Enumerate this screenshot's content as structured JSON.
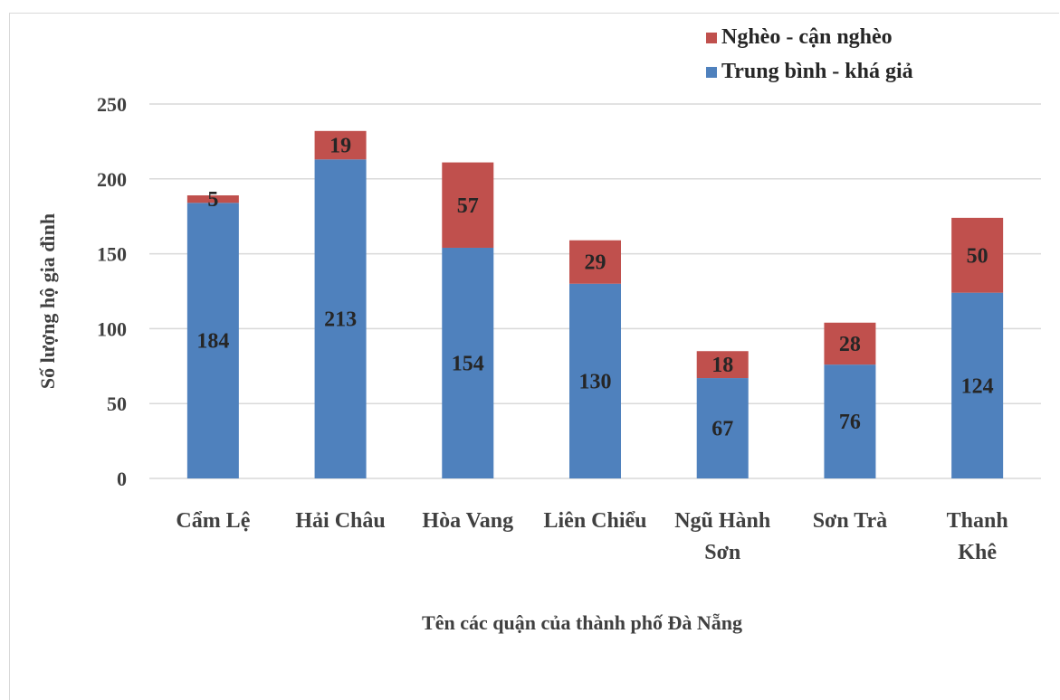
{
  "chart_data": {
    "type": "bar",
    "stacked": true,
    "categories": [
      [
        "Cẩm Lệ"
      ],
      [
        "Hải Châu"
      ],
      [
        "Hòa Vang"
      ],
      [
        "Liên Chiểu"
      ],
      [
        "Ngũ Hành",
        "Sơn"
      ],
      [
        "Sơn Trà"
      ],
      [
        "Thanh",
        "Khê"
      ]
    ],
    "series": [
      {
        "name": "Trung bình - khá giả",
        "color": "#4f81bd",
        "values": [
          184,
          213,
          154,
          130,
          67,
          76,
          124
        ]
      },
      {
        "name": "Nghèo - cận nghèo",
        "color": "#c0504d",
        "values": [
          5,
          19,
          57,
          29,
          18,
          28,
          50
        ]
      }
    ],
    "legend_order": [
      1,
      0
    ],
    "legend_position": "top-right",
    "xlabel": "Tên các quận của thành phố Đà Nẵng",
    "ylabel": "Số lượng hộ gia đình",
    "ylim": [
      0,
      250
    ],
    "yticks": [
      0,
      50,
      100,
      150,
      200,
      250
    ],
    "grid": true,
    "gridline_color": "#d9d9d9"
  }
}
